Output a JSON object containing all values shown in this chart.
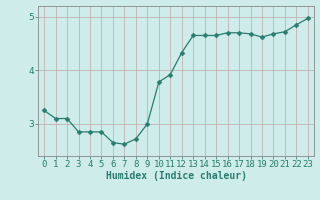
{
  "x": [
    0,
    1,
    2,
    3,
    4,
    5,
    6,
    7,
    8,
    9,
    10,
    11,
    12,
    13,
    14,
    15,
    16,
    17,
    18,
    19,
    20,
    21,
    22,
    23
  ],
  "y": [
    3.25,
    3.1,
    3.1,
    2.85,
    2.85,
    2.85,
    2.65,
    2.62,
    2.72,
    3.0,
    3.78,
    3.92,
    4.33,
    4.65,
    4.65,
    4.65,
    4.7,
    4.7,
    4.68,
    4.62,
    4.68,
    4.72,
    4.85,
    4.97
  ],
  "line_color": "#2a7d6e",
  "marker": "D",
  "marker_size": 2.5,
  "bg_color": "#ceecea",
  "grid_color": "#c0a8a8",
  "xlabel": "Humidex (Indice chaleur)",
  "yticks": [
    3,
    4,
    5
  ],
  "ylim": [
    2.4,
    5.2
  ],
  "xlim": [
    -0.5,
    23.5
  ],
  "xlabel_fontsize": 7,
  "tick_fontsize": 6.5,
  "text_color": "#2a7d6e"
}
